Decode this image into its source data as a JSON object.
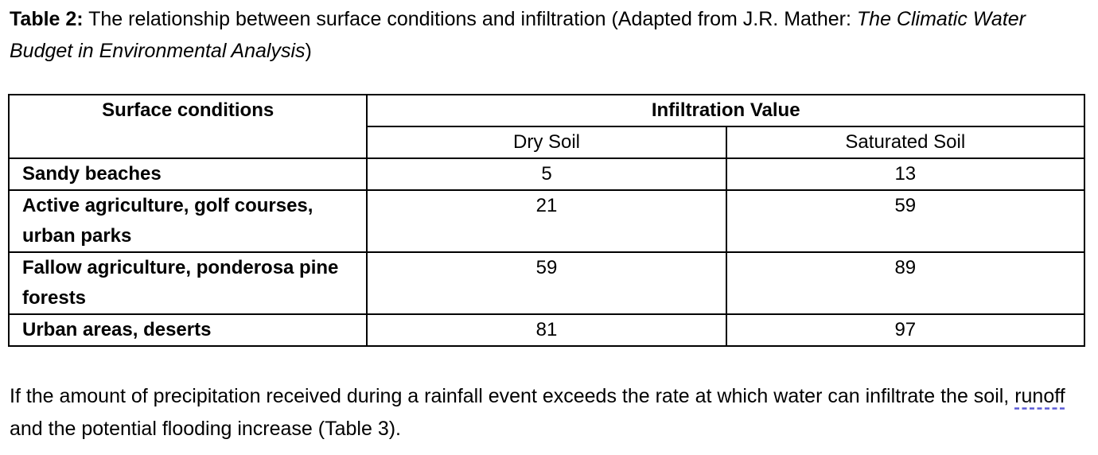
{
  "caption": {
    "label": "Table 2:",
    "text": " The relationship between surface conditions and infiltration (Adapted from J.R. Mather: ",
    "italic": "The Climatic Water Budget in Environmental Analysis",
    "end": ")"
  },
  "table": {
    "header": {
      "surface": "Surface conditions",
      "group": "Infiltration Value",
      "columns": [
        "Dry Soil",
        "Saturated Soil"
      ]
    },
    "rows": [
      [
        "Sandy beaches",
        5,
        13
      ],
      [
        "Active agriculture, golf courses, urban parks",
        21,
        59
      ],
      [
        "Fallow agriculture, ponderosa pine forests",
        59,
        89
      ],
      [
        "Urban areas, deserts",
        81,
        97
      ]
    ]
  },
  "paragraph": {
    "before": "If the amount of precipitation received during a rainfall event exceeds the rate at which water can infiltrate the soil, ",
    "link": "runoff",
    "after": " and the potential flooding increase (Table 3)."
  }
}
